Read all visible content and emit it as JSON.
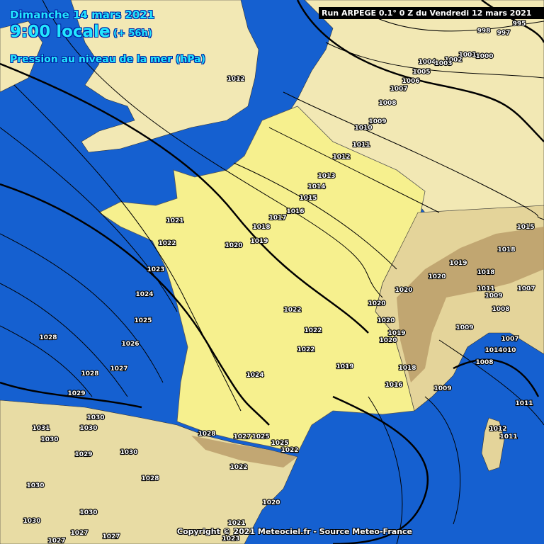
{
  "header": {
    "date": "Dimanche 14 mars 2021",
    "time": "9:00 locale",
    "lead_time": "(+ 56h)",
    "parameter": "Pression au niveau de la mer (hPa)"
  },
  "run_info": "Run ARPEGE 0.1° 0 Z du Vendredi 12 mars 2021",
  "copyright": "Copyright © 2021 Meteociel.fr - Source Meteo-France",
  "colors": {
    "sea": "#1560d0",
    "land": "#f2e8b4",
    "france": "#f6f08e",
    "mountains": "#b89a66",
    "isobar": "#000000",
    "header_text": "#22e6ff"
  },
  "isobar_labels": [
    "1012",
    "1004",
    "1005",
    "1006",
    "1007",
    "1008",
    "1009",
    "1010",
    "1011",
    "1012",
    "1013",
    "1014",
    "1015",
    "1016",
    "1017",
    "1018",
    "1019",
    "1020",
    "1021",
    "1022",
    "1023",
    "1024",
    "1025",
    "1026",
    "1027",
    "1028",
    "1028",
    "1029",
    "1030",
    "1031",
    "1030",
    "1030",
    "1029",
    "1030",
    "1028",
    "1030",
    "1030",
    "1030",
    "1027",
    "1027",
    "1027",
    "1028",
    "1027",
    "1025",
    "1025",
    "1022",
    "1022",
    "1022",
    "1022",
    "1024",
    "1019",
    "1020",
    "1016",
    "1009",
    "1018",
    "1008",
    "1009",
    "1007",
    "1010",
    "1014",
    "1008",
    "1015",
    "1018",
    "1018",
    "1019",
    "1020",
    "1020",
    "1020",
    "1019",
    "1020",
    "1012",
    "1011",
    "1011",
    "1022",
    "1020",
    "1021",
    "1023",
    "998",
    "997",
    "995",
    "1001",
    "1000",
    "1002",
    "1003",
    "1011",
    "1007",
    "1009"
  ]
}
